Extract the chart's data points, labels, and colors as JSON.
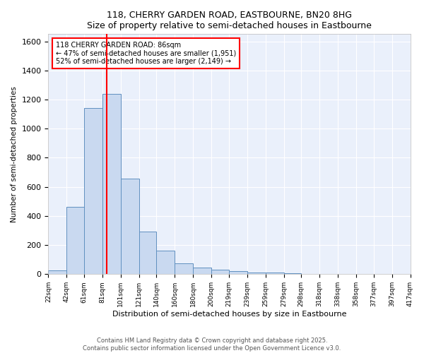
{
  "title": "118, CHERRY GARDEN ROAD, EASTBOURNE, BN20 8HG",
  "subtitle": "Size of property relative to semi-detached houses in Eastbourne",
  "xlabel": "Distribution of semi-detached houses by size in Eastbourne",
  "ylabel": "Number of semi-detached properties",
  "bin_edges": [
    22,
    42,
    61,
    81,
    101,
    121,
    140,
    160,
    180,
    200,
    219,
    239,
    259,
    279,
    298,
    318,
    338,
    358,
    377,
    397,
    417
  ],
  "bin_labels": [
    "22sqm",
    "42sqm",
    "61sqm",
    "81sqm",
    "101sqm",
    "121sqm",
    "140sqm",
    "160sqm",
    "180sqm",
    "200sqm",
    "219sqm",
    "239sqm",
    "259sqm",
    "279sqm",
    "298sqm",
    "318sqm",
    "338sqm",
    "358sqm",
    "377sqm",
    "397sqm",
    "417sqm"
  ],
  "all_values": [
    25,
    465,
    1140,
    1240,
    655,
    295,
    160,
    75,
    45,
    30,
    20,
    10,
    10,
    5,
    0,
    0,
    0,
    0,
    0,
    0
  ],
  "bar_color": "#c9d9f0",
  "bar_edge_color": "#6090c0",
  "vline_x": 86,
  "vline_color": "red",
  "annotation_text": "118 CHERRY GARDEN ROAD: 86sqm\n← 47% of semi-detached houses are smaller (1,951)\n52% of semi-detached houses are larger (2,149) →",
  "annotation_box_color": "white",
  "annotation_box_edge": "red",
  "ylim": [
    0,
    1650
  ],
  "background_color": "#eaf0fb",
  "footer": "Contains HM Land Registry data © Crown copyright and database right 2025.\nContains public sector information licensed under the Open Government Licence v3.0."
}
